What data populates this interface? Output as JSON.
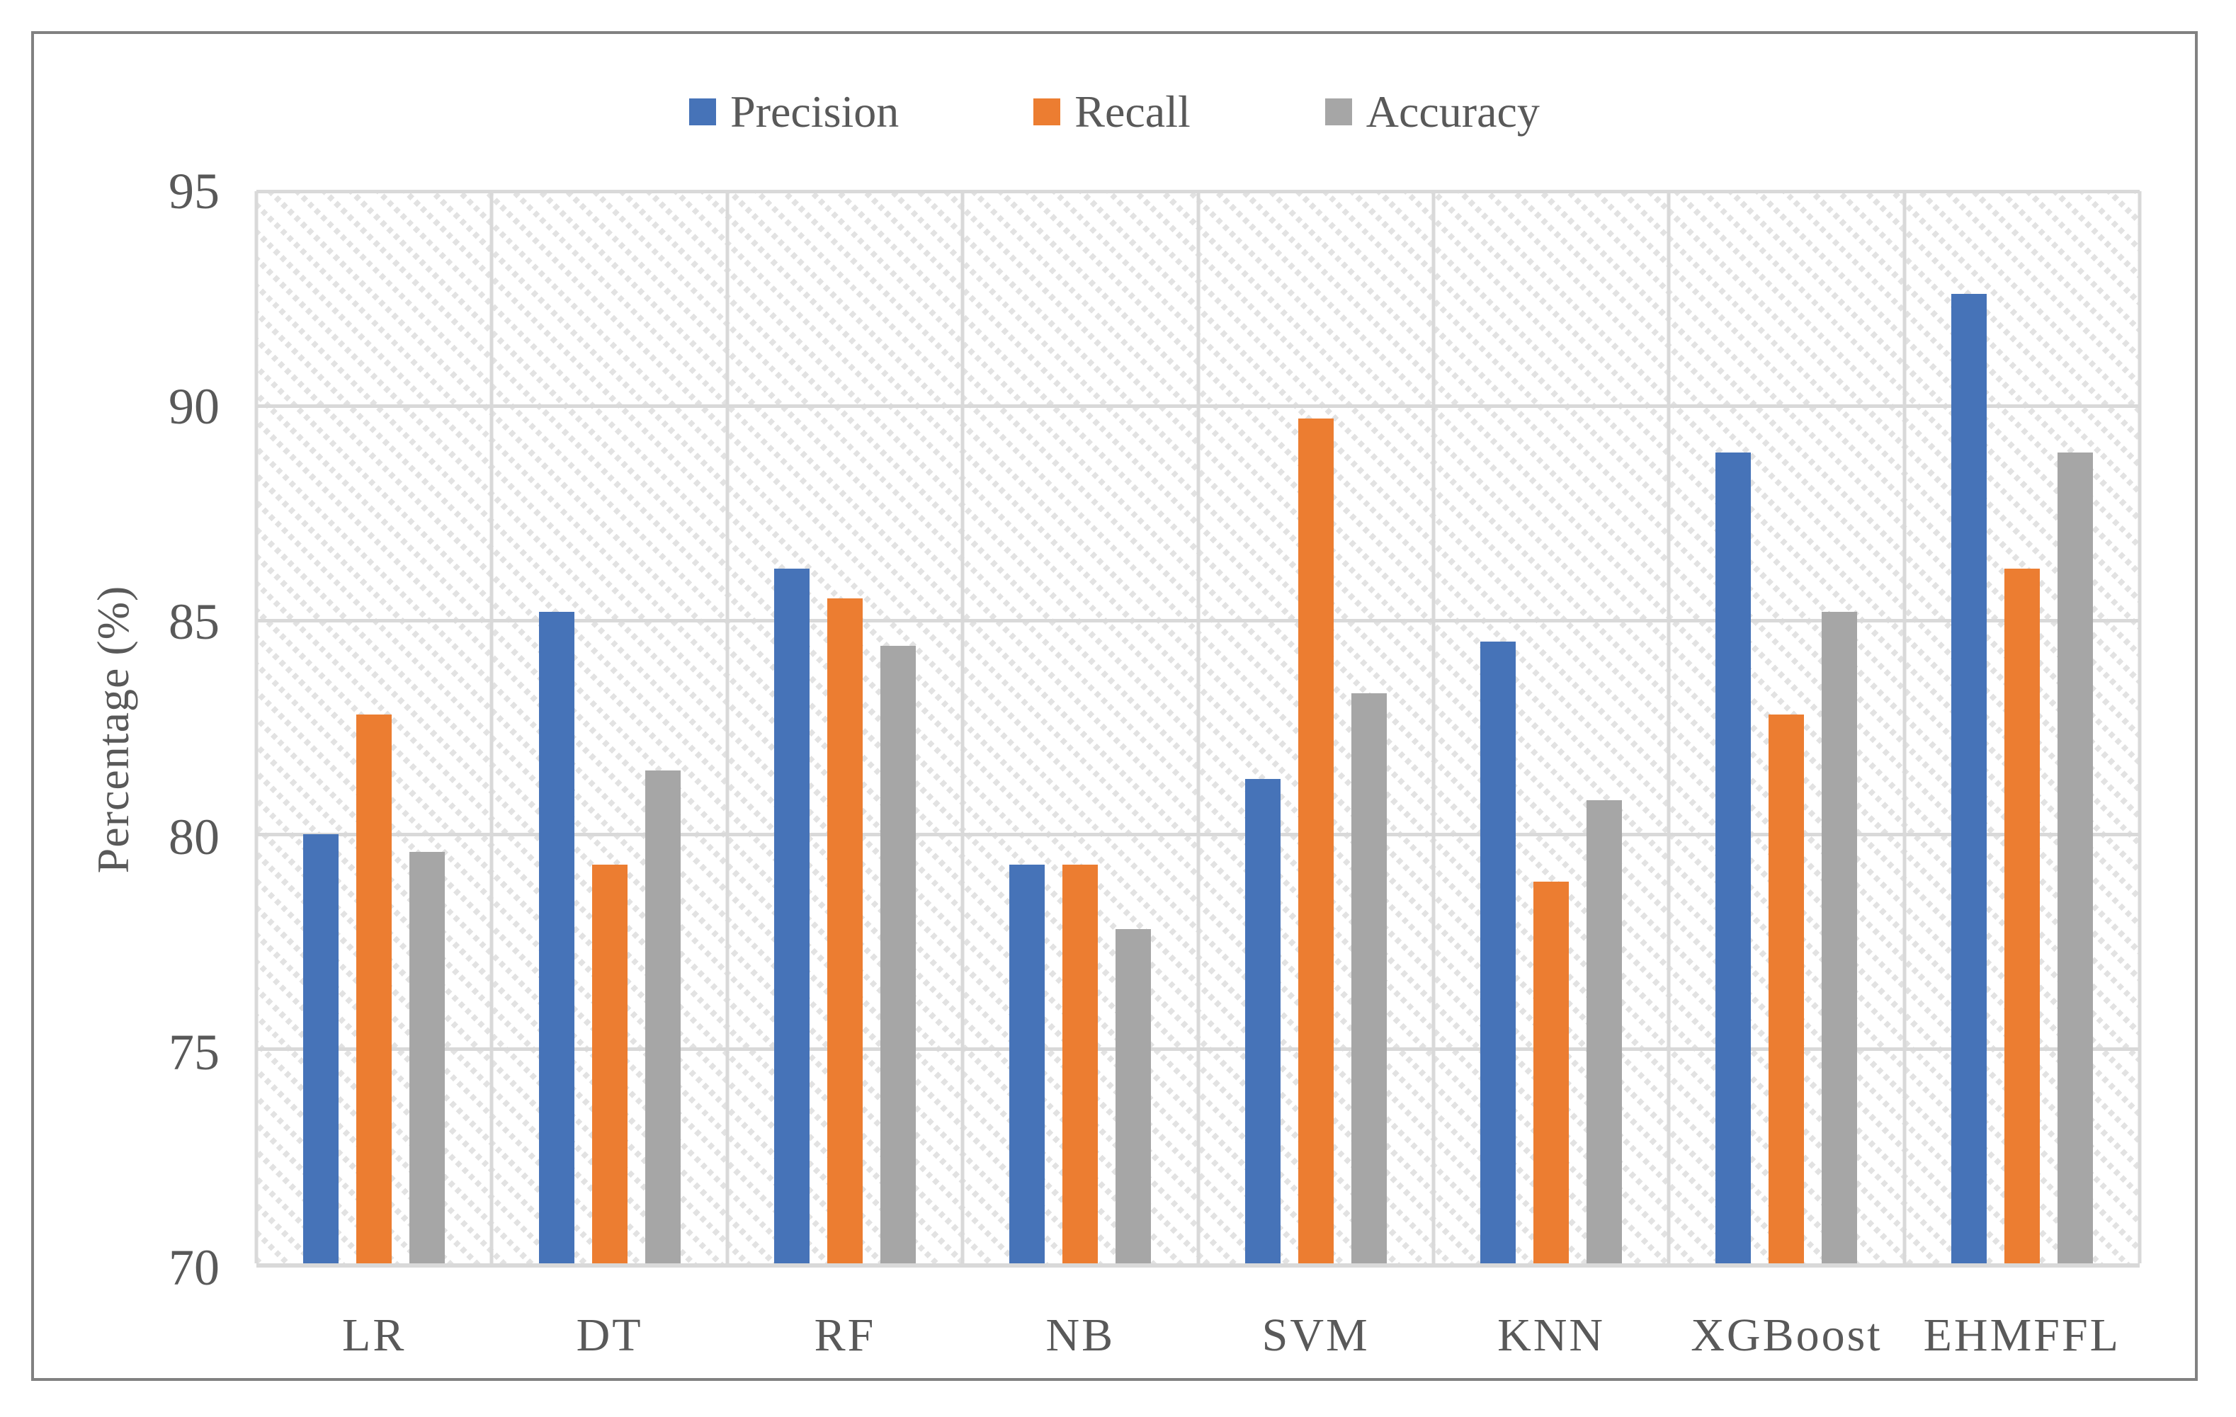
{
  "colors": {
    "text": "#595959",
    "gridline": "#D9D9D9",
    "frame_border": "#818181",
    "pattern_fill": "#E2E2E2",
    "precision_blue": "#4673B8",
    "recall_orange": "#EC7D31",
    "accuracy_gray": "#A6A6A6"
  },
  "chart_data": {
    "type": "bar",
    "title": "",
    "xlabel": "",
    "ylabel": "Percentage (%)",
    "ylim": [
      70,
      95
    ],
    "yticks": [
      95,
      90,
      85,
      80,
      75,
      70
    ],
    "grid": true,
    "legend_position": "top-center",
    "plot_area_fill": "diagonal-hatch-pattern",
    "categories": [
      "LR",
      "DT",
      "RF",
      "NB",
      "SVM",
      "KNN",
      "XGBoost",
      "EHMFFL"
    ],
    "series": [
      {
        "name": "Precision",
        "color": "#4673B8",
        "values": [
          80.0,
          85.2,
          86.2,
          79.3,
          81.3,
          84.5,
          88.9,
          92.6
        ]
      },
      {
        "name": "Recall",
        "color": "#EC7D31",
        "values": [
          82.8,
          79.3,
          85.5,
          79.3,
          89.7,
          78.9,
          82.8,
          86.2
        ]
      },
      {
        "name": "Accuracy",
        "color": "#A6A6A6",
        "values": [
          79.6,
          81.5,
          84.4,
          77.8,
          83.3,
          80.8,
          85.2,
          88.9
        ]
      }
    ]
  }
}
